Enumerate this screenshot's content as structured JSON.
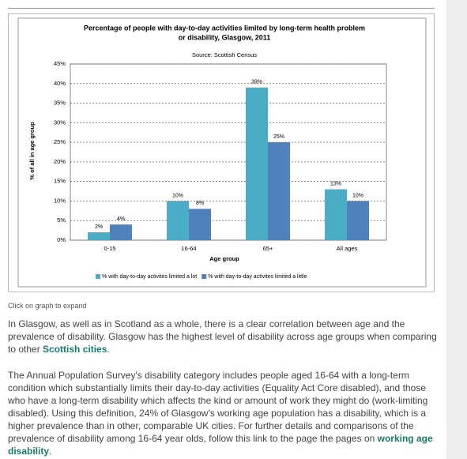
{
  "chart_data": {
    "type": "bar",
    "title": "Percentage of people with day-to-day activities limited by long-term health problem",
    "title_line2": "or disability, Glasgow, 2011",
    "subtitle": "Source: Scottish Census",
    "x_label": "Age group",
    "y_label": "% of all in age group",
    "categories": [
      "0-15",
      "16-64",
      "65+",
      "All ages"
    ],
    "series": [
      {
        "name": "% with day-to-day activites limited a lot",
        "color": "#4bacc6",
        "values": [
          2,
          10,
          39,
          13
        ],
        "value_labels": [
          "2%",
          "10%",
          "39%",
          "13%"
        ]
      },
      {
        "name": "% with day-to-day activites limited a little",
        "color": "#4f81bd",
        "values": [
          4,
          8,
          25,
          10
        ],
        "value_labels": [
          "4%",
          "8%",
          "25%",
          "10%"
        ]
      }
    ],
    "ylim": [
      0,
      45
    ],
    "yticks": [
      {
        "value": 0,
        "label": "0%"
      },
      {
        "value": 5,
        "label": "5%"
      },
      {
        "value": 10,
        "label": "10%"
      },
      {
        "value": 15,
        "label": "15%"
      },
      {
        "value": 20,
        "label": "20%"
      },
      {
        "value": 25,
        "label": "25%"
      },
      {
        "value": 30,
        "label": "30%"
      },
      {
        "value": 35,
        "label": "35%"
      },
      {
        "value": 40,
        "label": "40%"
      },
      {
        "value": 45,
        "label": "45%"
      }
    ],
    "grid": true
  },
  "caption": "Click on graph to expand",
  "paragraphs": [
    [
      "In Glasgow, as well as in Scotland as a whole, there is a clear correlation between age and the prevalence of disability. Glasgow has the highest level of disability across age groups when comparing to other ",
      "Scottish cities",
      "."
    ],
    [
      "The Annual Population Survey's disability category includes people aged 16-64 with a long-term condition which substantially limits their day-to-day activities (Equality Act Core disabled), and those who have a long-term disability which affects the kind or amount of work they might do (work-limiting disabled). Using this definition, 24% of Glasgow's working age population has a disability, which is a higher prevalence than in other, comparable UK cities. For further details and comparisons of the prevalence of disability among 16-64 year olds, follow this link to the page the pages on ",
      "working age disability",
      "."
    ]
  ]
}
